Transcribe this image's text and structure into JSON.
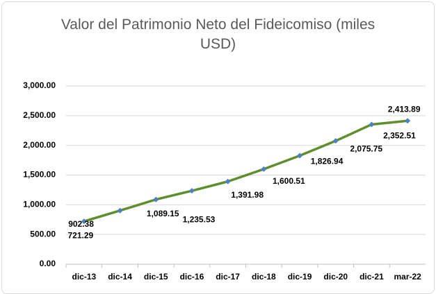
{
  "chart_data": {
    "type": "line",
    "title": "Valor del Patrimonio Neto del Fideicomiso  (miles USD)",
    "categories": [
      "dic-13",
      "dic-14",
      "dic-15",
      "dic-16",
      "dic-17",
      "dic-18",
      "dic-19",
      "dic-20",
      "dic-21",
      "mar-22"
    ],
    "series": [
      {
        "name": "Valor del Patrimonio Neto",
        "color": "#5e8f2e",
        "marker_color": "#4f81bd",
        "values": [
          721.29,
          902.38,
          1089.15,
          1235.53,
          1391.98,
          1600.51,
          1826.94,
          2075.75,
          2352.51,
          2413.89
        ],
        "value_labels": [
          "721.29",
          "902.38",
          "1,089.15",
          "1,235.53",
          "1,391.98",
          "1,600.51",
          "1,826.94",
          "2,075.75",
          "2,352.51",
          "2,413.89"
        ]
      }
    ],
    "ylim": [
      0,
      3000
    ],
    "yticks": [
      {
        "value": 0,
        "label": "0.00"
      },
      {
        "value": 500,
        "label": "500.00"
      },
      {
        "value": 1000,
        "label": "1,000.00"
      },
      {
        "value": 1500,
        "label": "1,500.00"
      },
      {
        "value": 2000,
        "label": "2,000.00"
      },
      {
        "value": 2500,
        "label": "2,500.00"
      },
      {
        "value": 3000,
        "label": "3,000.00"
      }
    ],
    "grid": true
  }
}
